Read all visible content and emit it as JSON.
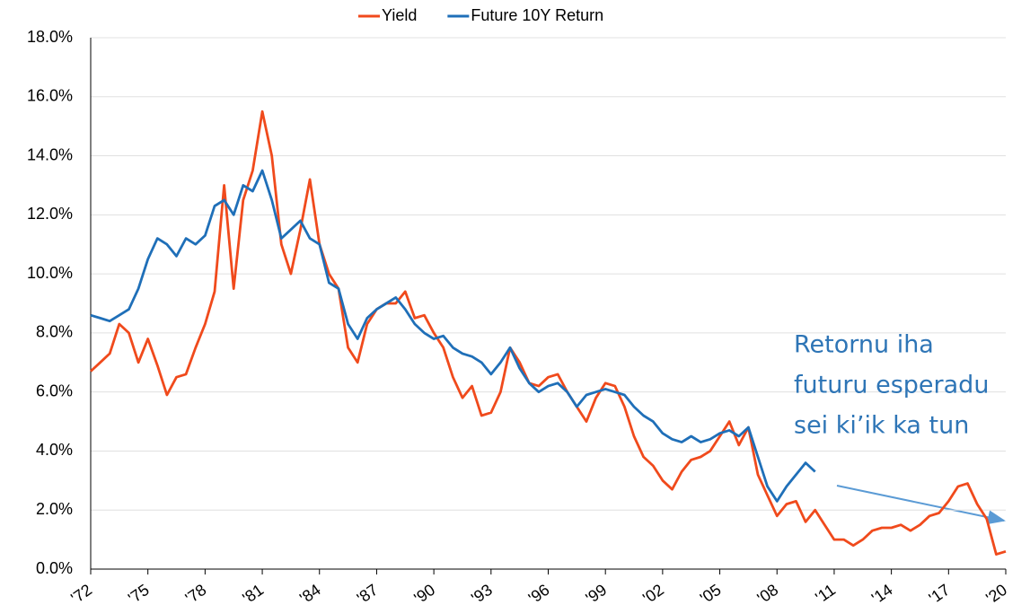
{
  "chart_data": {
    "type": "line",
    "annotation": [
      "Retornu iha",
      "futuru esperadu",
      "sei ki’ik ka tun"
    ],
    "x": [
      1972,
      1972.5,
      1973,
      1973.5,
      1974,
      1974.5,
      1975,
      1975.5,
      1976,
      1976.5,
      1977,
      1977.5,
      1978,
      1978.5,
      1979,
      1979.5,
      1980,
      1980.5,
      1981,
      1981.5,
      1982,
      1982.5,
      1983,
      1983.5,
      1984,
      1984.5,
      1985,
      1985.5,
      1986,
      1986.5,
      1987,
      1987.5,
      1988,
      1988.5,
      1989,
      1989.5,
      1990,
      1990.5,
      1991,
      1991.5,
      1992,
      1992.5,
      1993,
      1993.5,
      1994,
      1994.5,
      1995,
      1995.5,
      1996,
      1996.5,
      1997,
      1997.5,
      1998,
      1998.5,
      1999,
      1999.5,
      2000,
      2000.5,
      2001,
      2001.5,
      2002,
      2002.5,
      2003,
      2003.5,
      2004,
      2004.5,
      2005,
      2005.5,
      2006,
      2006.5,
      2007,
      2007.5,
      2008,
      2008.5,
      2009,
      2009.5,
      2010,
      2010.5,
      2011,
      2011.5,
      2012,
      2012.5,
      2013,
      2013.5,
      2014,
      2014.5,
      2015,
      2015.5,
      2016,
      2016.5,
      2017,
      2017.5,
      2018,
      2018.5,
      2019,
      2019.5,
      2020
    ],
    "series": [
      {
        "name": "Yield",
        "color": "#f04a1c",
        "values": [
          6.7,
          7.0,
          7.3,
          8.3,
          8.0,
          7.0,
          7.8,
          6.9,
          5.9,
          6.5,
          6.6,
          7.5,
          8.3,
          9.4,
          13.0,
          9.5,
          12.5,
          13.5,
          15.5,
          14.0,
          11.0,
          10.0,
          11.5,
          13.2,
          11.0,
          10.0,
          9.5,
          7.5,
          7.0,
          8.3,
          8.8,
          9.0,
          9.0,
          9.4,
          8.5,
          8.6,
          8.0,
          7.5,
          6.5,
          5.8,
          6.2,
          5.2,
          5.3,
          6.0,
          7.5,
          7.0,
          6.3,
          6.2,
          6.5,
          6.6,
          6.0,
          5.5,
          5.0,
          5.8,
          6.3,
          6.2,
          5.5,
          4.5,
          3.8,
          3.5,
          3.0,
          2.7,
          3.3,
          3.7,
          3.8,
          4.0,
          4.5,
          5.0,
          4.2,
          4.8,
          3.2,
          2.5,
          1.8,
          2.2,
          2.3,
          1.6,
          2.0,
          1.5,
          1.0,
          1.0,
          0.8,
          1.0,
          1.3,
          1.4,
          1.4,
          1.5,
          1.3,
          1.5,
          1.8,
          1.9,
          2.3,
          2.8,
          2.9,
          2.2,
          1.7,
          0.5,
          0.6
        ]
      },
      {
        "name": "Future 10Y Return",
        "color": "#1f6fb8",
        "values": [
          8.6,
          8.5,
          8.4,
          8.6,
          8.8,
          9.5,
          10.5,
          11.2,
          11.0,
          10.6,
          11.2,
          11.0,
          11.3,
          12.3,
          12.5,
          12.0,
          13.0,
          12.8,
          13.5,
          12.5,
          11.2,
          11.5,
          11.8,
          11.2,
          11.0,
          9.7,
          9.5,
          8.3,
          7.8,
          8.5,
          8.8,
          9.0,
          9.2,
          8.8,
          8.3,
          8.0,
          7.8,
          7.9,
          7.5,
          7.3,
          7.2,
          7.0,
          6.6,
          7.0,
          7.5,
          6.8,
          6.3,
          6.0,
          6.2,
          6.3,
          6.0,
          5.5,
          5.9,
          6.0,
          6.1,
          6.0,
          5.9,
          5.5,
          5.2,
          5.0,
          4.6,
          4.4,
          4.3,
          4.5,
          4.3,
          4.4,
          4.6,
          4.7,
          4.5,
          4.8,
          3.8,
          2.8,
          2.3,
          2.8,
          3.2,
          3.6,
          3.3,
          null,
          null,
          null,
          null,
          null,
          null,
          null,
          null,
          null,
          null,
          null,
          null,
          null,
          null,
          null,
          null,
          null,
          null,
          null,
          null
        ]
      }
    ],
    "xlim": [
      1972,
      2020
    ],
    "xticks": [
      {
        "value": 1972,
        "label": "'72"
      },
      {
        "value": 1975,
        "label": "'75"
      },
      {
        "value": 1978,
        "label": "'78"
      },
      {
        "value": 1981,
        "label": "'81"
      },
      {
        "value": 1984,
        "label": "'84"
      },
      {
        "value": 1987,
        "label": "'87"
      },
      {
        "value": 1990,
        "label": "'90"
      },
      {
        "value": 1993,
        "label": "'93"
      },
      {
        "value": 1996,
        "label": "'96"
      },
      {
        "value": 1999,
        "label": "'99"
      },
      {
        "value": 2002,
        "label": "'02"
      },
      {
        "value": 2005,
        "label": "'05"
      },
      {
        "value": 2008,
        "label": "'08"
      },
      {
        "value": 2011,
        "label": "'11"
      },
      {
        "value": 2014,
        "label": "'14"
      },
      {
        "value": 2017,
        "label": "'17"
      },
      {
        "value": 2020,
        "label": "'20"
      }
    ],
    "ylim": [
      0,
      18
    ],
    "yticks": [
      {
        "value": 0,
        "label": "0.0%"
      },
      {
        "value": 2,
        "label": "2.0%"
      },
      {
        "value": 4,
        "label": "4.0%"
      },
      {
        "value": 6,
        "label": "6.0%"
      },
      {
        "value": 8,
        "label": "8.0%"
      },
      {
        "value": 10,
        "label": "10.0%"
      },
      {
        "value": 12,
        "label": "12.0%"
      },
      {
        "value": 14,
        "label": "14.0%"
      },
      {
        "value": 16,
        "label": "16.0%"
      },
      {
        "value": 18,
        "label": "18.0%"
      }
    ],
    "grid": true,
    "legend": "top"
  }
}
